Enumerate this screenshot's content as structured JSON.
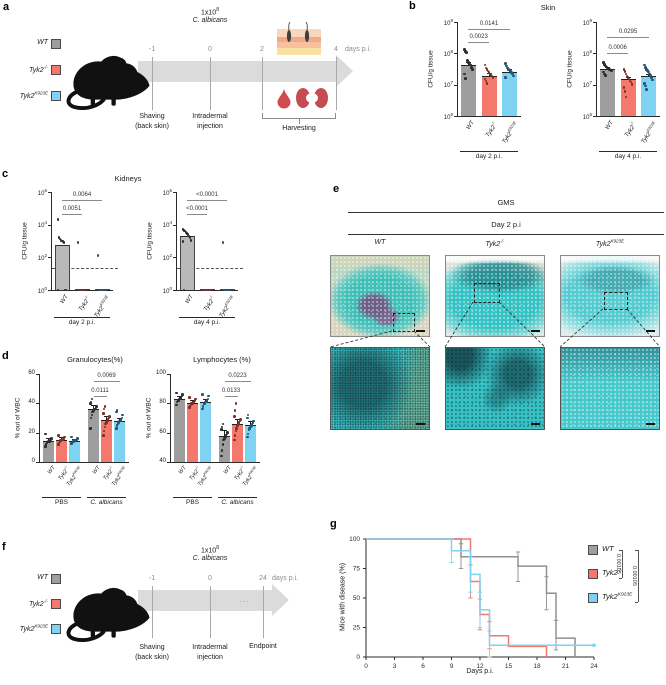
{
  "colors": {
    "wt": "#9E9E9E",
    "ko": "#F4796C",
    "ke": "#7ED3F2",
    "wt_dot": "#2E2E2E",
    "ko_dot": "#7B2F28",
    "ke_dot": "#27546E",
    "axis": "#2B2B2B",
    "sig": "#8A8A8A",
    "band": "#DBDBDB",
    "tick": "#A9A9A9",
    "ticktext": "#8C8C8C",
    "teal": "#3CC5C8",
    "blood": "#D34A4E",
    "kidney": "#C64B52"
  },
  "genotype_legend": [
    "WT",
    "Tyk2-/-",
    "Tyk2K923E"
  ],
  "panels": {
    "a": {
      "label": "a",
      "dose_base": "1x10",
      "dose_exp": "8",
      "organism": "C. albicans",
      "tick_labels": [
        "-1",
        "0",
        "2",
        "4"
      ],
      "days_label": "days p.i.",
      "event1": [
        "Shaving",
        "(back skin)"
      ],
      "event2": [
        "Intradermal",
        "injection"
      ],
      "harvest": "Harvesting"
    },
    "b": {
      "label": "b",
      "title": "Skin"
    },
    "c": {
      "label": "c",
      "title": "Kidneys"
    },
    "d": {
      "label": "d"
    },
    "e": {
      "label": "e",
      "stain": "GMS",
      "day": "Day 2 p.i",
      "columns": [
        "WT",
        "Tyk2-/-",
        "Tyk2K923E"
      ]
    },
    "f": {
      "label": "f",
      "dose_base": "1x10",
      "dose_exp": "8",
      "organism": "C. albicans",
      "tick_labels": [
        "-1",
        "0",
        "24"
      ],
      "days_label": "days p.i.",
      "gap_dots": "...",
      "event1": [
        "Shaving",
        "(back skin)"
      ],
      "event2": [
        "Intradermal",
        "injection"
      ],
      "endpoint": "Endpoint"
    },
    "g": {
      "label": "g"
    }
  },
  "chart_data": [
    {
      "id": "b1",
      "type": "log_bar",
      "group_label": "day 2 p.i.",
      "ylabel": "CFU/g tissue",
      "ytick_exps": [
        9,
        8,
        7,
        6
      ],
      "categories": [
        "WT",
        "Tyk2-/-",
        "Tyk2K923E"
      ],
      "values": [
        43000000.0,
        19000000.0,
        26000000.0
      ],
      "err_frac": 0.08,
      "points": [
        [
          130000000.0,
          115000000.0,
          105000000.0,
          60000000.0,
          52000000.0,
          46000000.0,
          42000000.0,
          36000000.0,
          30000000.0,
          22000000.0,
          16000000.0
        ],
        [
          42000000.0,
          34000000.0,
          30000000.0,
          27000000.0,
          24000000.0,
          22000000.0,
          20000000.0,
          19000000.0,
          17000000.0,
          15000000.0,
          13000000.0,
          11000000.0
        ],
        [
          48000000.0,
          39000000.0,
          34000000.0,
          31000000.0,
          29000000.0,
          27000000.0,
          24000000.0,
          22000000.0,
          19000000.0,
          17000000.0
        ]
      ],
      "sig": [
        {
          "a": 0,
          "b": 1,
          "label": "0.0023",
          "row": 0
        },
        {
          "a": 0,
          "b": 2,
          "label": "0.0141",
          "row": 1
        }
      ]
    },
    {
      "id": "b2",
      "type": "log_bar",
      "group_label": "day 4 p.i.",
      "ylabel": "CFU/g tissue",
      "ytick_exps": [
        9,
        8,
        7,
        6
      ],
      "categories": [
        "WT",
        "Tyk2-/-",
        "Tyk2K923E"
      ],
      "values": [
        32000000.0,
        15000000.0,
        19000000.0
      ],
      "err_frac": 0.06,
      "points": [
        [
          50000000.0,
          44000000.0,
          40000000.0,
          37000000.0,
          34000000.0,
          32000000.0,
          31000000.0,
          29000000.0,
          27000000.0,
          25000000.0,
          22000000.0,
          20000000.0
        ],
        [
          30000000.0,
          26000000.0,
          22000000.0,
          19000000.0,
          17000000.0,
          15000000.0,
          13000000.0,
          12000000.0,
          10000000.0,
          8000000.0,
          6000000.0,
          4000000.0
        ],
        [
          42000000.0,
          36000000.0,
          31000000.0,
          28000000.0,
          25000000.0,
          22000000.0,
          20000000.0,
          17000000.0,
          14000000.0,
          11000000.0,
          9000000.0,
          7000000.0
        ]
      ],
      "sig": [
        {
          "a": 0,
          "b": 1,
          "label": "0.0006",
          "row": 0
        },
        {
          "a": 0,
          "b": 2,
          "label": "0.0295",
          "row": 1
        }
      ]
    },
    {
      "id": "c1",
      "type": "log_bar",
      "group_label": "day 2 p.i.",
      "ylabel": "CFU/g tissue",
      "ytick_exps": [
        6,
        4,
        2,
        0
      ],
      "dashed_at": 21,
      "dark_top": true,
      "categories": [
        "WT",
        "Tyk2-/-",
        "Tyk2K923E"
      ],
      "values": [
        550,
        1.15,
        1.15
      ],
      "err_frac": 0,
      "points": [
        [
          20000.0,
          1600.0,
          1300.0,
          1100.0,
          1000.0,
          900.0,
          800.0,
          1,
          1,
          1
        ],
        [
          800.0,
          1,
          1,
          1,
          1,
          1,
          1,
          1
        ],
        [
          130.0,
          1,
          1,
          1,
          1,
          1,
          1,
          1
        ]
      ],
      "sig": [
        {
          "a": 0,
          "b": 1,
          "label": "0.0051",
          "row": 0
        },
        {
          "a": 0,
          "b": 2,
          "label": "0.0064",
          "row": 1
        }
      ]
    },
    {
      "id": "c2",
      "type": "log_bar",
      "group_label": "day 4 p.i.",
      "ylabel": "CFU/g tissue",
      "ytick_exps": [
        6,
        4,
        2,
        0
      ],
      "dashed_at": 21,
      "dark_top": true,
      "categories": [
        "WT",
        "Tyk2-/-",
        "Tyk2K923E"
      ],
      "values": [
        2000,
        1.15,
        1.15
      ],
      "err_frac": 0,
      "points": [
        [
          5000.0,
          4500.0,
          4000.0,
          3200.0,
          2800.0,
          2400.0,
          2000.0,
          1600.0,
          1100.0,
          900.0,
          1
        ],
        [
          1,
          1,
          1,
          1,
          1,
          1,
          1,
          1
        ],
        [
          800.0,
          1,
          1,
          1,
          1,
          1,
          1,
          1
        ]
      ],
      "sig": [
        {
          "a": 0,
          "b": 1,
          "label": "<0.0001",
          "row": 0
        },
        {
          "a": 0,
          "b": 2,
          "label": "<0.0001",
          "row": 1
        }
      ]
    },
    {
      "id": "d1",
      "type": "grouped_bar",
      "title": "Granulocytes(%)",
      "ylabel": "% out of WBC",
      "ymin": 0,
      "ymax": 60,
      "yticks": [
        0,
        20,
        40,
        60
      ],
      "categories": [
        "WT",
        "Tyk2-/-",
        "Tyk2K923E"
      ],
      "groups": [
        {
          "label": "PBS",
          "italic": false,
          "values": [
            14,
            15,
            14.5
          ],
          "sd": [
            2.5,
            2,
            1.5
          ],
          "points": [
            [
              10.5,
              12,
              13,
              13.5,
              14,
              14,
              14.5,
              15,
              16,
              19
            ],
            [
              12,
              13,
              14,
              14.5,
              15,
              15,
              15.5,
              16,
              17,
              18
            ],
            [
              12.5,
              13,
              14,
              14,
              14.5,
              15,
              15,
              15.5,
              16,
              17
            ]
          ]
        },
        {
          "label": "C. albicans",
          "italic": true,
          "values": [
            36,
            28.5,
            28
          ],
          "sd": [
            3,
            3,
            2
          ],
          "points": [
            [
              23,
              30,
              32,
              34,
              35,
              36,
              36,
              37,
              38,
              40,
              41,
              43
            ],
            [
              18,
              21,
              24,
              26,
              27,
              28,
              29,
              30,
              31,
              33,
              36,
              38
            ],
            [
              23,
              25,
              26,
              27,
              28,
              28,
              29,
              30,
              32,
              34,
              35
            ]
          ]
        }
      ],
      "sig": [
        {
          "group": 1,
          "a": 0,
          "b": 1,
          "label": "0.0111",
          "row": 0
        },
        {
          "group": 1,
          "a": 0,
          "b": 2,
          "label": "0.0069",
          "row": 1
        }
      ]
    },
    {
      "id": "d2",
      "type": "grouped_bar",
      "title": "Lymphocytes (%)",
      "ylabel": "% out of WBC",
      "ymin": 40,
      "ymax": 100,
      "yticks": [
        40,
        60,
        80,
        100
      ],
      "categories": [
        "WT",
        "Tyk2-/-",
        "Tyk2K923E"
      ],
      "groups": [
        {
          "label": "PBS",
          "italic": false,
          "values": [
            83,
            80.5,
            81
          ],
          "sd": [
            2,
            1.5,
            2
          ],
          "points": [
            [
              79,
              81,
              82,
              82,
              83,
              83,
              84,
              85,
              86,
              87
            ],
            [
              77,
              78,
              79,
              80,
              80,
              81,
              81,
              82,
              83,
              84
            ],
            [
              76,
              78,
              80,
              80,
              81,
              81,
              82,
              83,
              85,
              86
            ]
          ]
        },
        {
          "label": "C. albicans",
          "italic": true,
          "values": [
            58,
            66,
            65.5
          ],
          "sd": [
            4,
            3,
            2.5
          ],
          "points": [
            [
              44,
              48,
              52,
              55,
              56,
              57,
              58,
              59,
              60,
              62,
              64,
              66
            ],
            [
              55,
              58,
              61,
              63,
              65,
              66,
              67,
              68,
              69,
              71,
              75,
              80
            ],
            [
              57,
              59,
              62,
              63,
              64,
              65,
              66,
              67,
              68,
              70,
              72
            ]
          ]
        }
      ],
      "sig": [
        {
          "group": 1,
          "a": 0,
          "b": 1,
          "label": "0.0133",
          "row": 0
        },
        {
          "group": 1,
          "a": 0,
          "b": 2,
          "label": "0.0223",
          "row": 1
        }
      ]
    },
    {
      "id": "g",
      "type": "step",
      "xlabel": "Days p.i.",
      "ylabel": "Mice with disease (%)",
      "xticks": [
        0,
        3,
        6,
        9,
        12,
        15,
        18,
        21,
        24
      ],
      "yticks": [
        0,
        25,
        50,
        75,
        100
      ],
      "xmax": 24,
      "series": [
        {
          "name": "WT",
          "x": [
            0,
            10,
            10,
            16,
            16,
            19,
            19,
            20,
            20,
            22,
            22
          ],
          "y": [
            100,
            100,
            85,
            85,
            77,
            77,
            54,
            54,
            16,
            16,
            0
          ],
          "err": [
            {
              "x": 10,
              "lo": 75,
              "hi": 96
            },
            {
              "x": 16,
              "lo": 64,
              "hi": 89
            },
            {
              "x": 19,
              "lo": 40,
              "hi": 68
            },
            {
              "x": 20,
              "lo": 6,
              "hi": 31
            }
          ]
        },
        {
          "name": "Tyk2-/-",
          "x": [
            0,
            11,
            11,
            12,
            12,
            13,
            13,
            15,
            15,
            19,
            19
          ],
          "y": [
            100,
            100,
            64,
            64,
            36,
            36,
            18,
            18,
            9,
            9,
            0
          ],
          "err": [
            {
              "x": 11,
              "lo": 50,
              "hi": 78
            },
            {
              "x": 12,
              "lo": 23,
              "hi": 49
            },
            {
              "x": 13,
              "lo": 7,
              "hi": 30
            }
          ]
        },
        {
          "name": "Tyk2K923E",
          "end_marker": true,
          "x": [
            0,
            9,
            9,
            11,
            11,
            12,
            12,
            13,
            13,
            24
          ],
          "y": [
            100,
            100,
            90,
            90,
            70,
            70,
            40,
            40,
            10,
            10
          ],
          "err": [
            {
              "x": 9,
              "lo": 80,
              "hi": 100
            },
            {
              "x": 11,
              "lo": 55,
              "hi": 85
            },
            {
              "x": 12,
              "lo": 25,
              "hi": 55
            },
            {
              "x": 13,
              "lo": 0,
              "hi": 22
            }
          ]
        }
      ],
      "pvalues": [
        {
          "label": "0.00105",
          "pair": [
            "WT",
            "Tyk2-/-"
          ]
        },
        {
          "label": "0.00105",
          "pair": [
            "WT",
            "Tyk2K923E"
          ]
        }
      ]
    }
  ]
}
